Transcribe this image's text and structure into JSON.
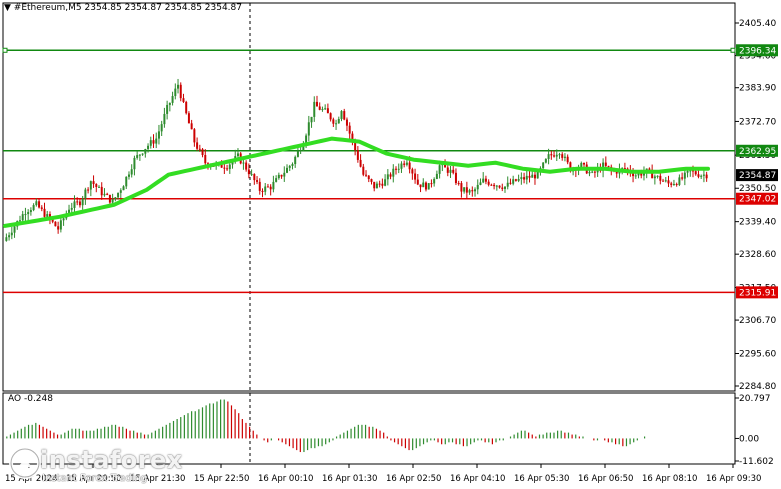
{
  "header": {
    "symbol": "#Ethereum,M5",
    "ohlc": "2354.85 2354.87 2354.85 2354.87"
  },
  "watermark": {
    "brand": "instaforex",
    "tagline": "Instant Forex Trading"
  },
  "colors": {
    "bull_candle": "#2e8b2e",
    "bear_candle": "#cc0000",
    "moving_average": "#33dd22",
    "resistance_line": "#118811",
    "support_line": "#dd0000",
    "ao_up": "#2e8b2e",
    "ao_down": "#cc0000"
  },
  "chart_data": {
    "type": "candlestick",
    "price_axis": {
      "ylim": [
        2284.8,
        2405.4
      ],
      "ticks": [
        "2405.40",
        "2394.60",
        "2383.90",
        "2372.70",
        "2361.50",
        "2350.50",
        "2339.40",
        "2328.60",
        "2317.50",
        "2306.70",
        "2295.60",
        "2284.80"
      ]
    },
    "time_labels": [
      "15 Apr 2024",
      "15 Apr 20:50",
      "15 Apr 21:30",
      "15 Apr 22:50",
      "16 Apr 00:10",
      "16 Apr 01:30",
      "16 Apr 02:50",
      "16 Apr 04:10",
      "16 Apr 05:30",
      "16 Apr 06:50",
      "16 Apr 08:10",
      "16 Apr 09:30"
    ],
    "levels": [
      {
        "value": 2396.34,
        "label": "2396.34",
        "kind": "resistance"
      },
      {
        "value": 2362.95,
        "label": "2362.95",
        "kind": "resistance"
      },
      {
        "value": 2347.02,
        "label": "2347.02",
        "kind": "support"
      },
      {
        "value": 2315.91,
        "label": "2315.91",
        "kind": "support"
      }
    ],
    "current_price": {
      "value": 2354.87,
      "label": "2354.87"
    },
    "close_path": [
      [
        0,
        2333
      ],
      [
        4,
        2338
      ],
      [
        8,
        2343
      ],
      [
        12,
        2345
      ],
      [
        16,
        2341
      ],
      [
        20,
        2337
      ],
      [
        24,
        2344
      ],
      [
        28,
        2346
      ],
      [
        32,
        2353
      ],
      [
        36,
        2349
      ],
      [
        40,
        2346
      ],
      [
        44,
        2352
      ],
      [
        48,
        2360
      ],
      [
        52,
        2364
      ],
      [
        56,
        2367
      ],
      [
        60,
        2377
      ],
      [
        64,
        2385
      ],
      [
        66,
        2378
      ],
      [
        70,
        2366
      ],
      [
        74,
        2359
      ],
      [
        78,
        2358
      ],
      [
        82,
        2358
      ],
      [
        86,
        2361
      ],
      [
        90,
        2356
      ],
      [
        94,
        2350
      ],
      [
        98,
        2351
      ],
      [
        102,
        2355
      ],
      [
        106,
        2359
      ],
      [
        110,
        2366
      ],
      [
        114,
        2378
      ],
      [
        118,
        2376
      ],
      [
        122,
        2372
      ],
      [
        124,
        2377
      ],
      [
        128,
        2366
      ],
      [
        132,
        2355
      ],
      [
        136,
        2351
      ],
      [
        140,
        2353
      ],
      [
        144,
        2357
      ],
      [
        148,
        2360
      ],
      [
        152,
        2352
      ],
      [
        156,
        2351
      ],
      [
        160,
        2358
      ],
      [
        164,
        2356
      ],
      [
        168,
        2350
      ],
      [
        172,
        2349
      ],
      [
        176,
        2353
      ],
      [
        180,
        2352
      ],
      [
        184,
        2351
      ],
      [
        188,
        2353
      ],
      [
        192,
        2354
      ],
      [
        196,
        2355
      ],
      [
        200,
        2361
      ],
      [
        204,
        2363
      ],
      [
        208,
        2357
      ],
      [
        212,
        2358
      ],
      [
        216,
        2355
      ],
      [
        220,
        2358
      ],
      [
        224,
        2356
      ],
      [
        228,
        2357
      ],
      [
        232,
        2355
      ],
      [
        236,
        2356
      ],
      [
        240,
        2354
      ],
      [
        244,
        2352
      ],
      [
        248,
        2353
      ],
      [
        252,
        2356
      ],
      [
        256,
        2355
      ],
      [
        258,
        2355
      ]
    ],
    "ma_path": [
      [
        0,
        2338
      ],
      [
        20,
        2341
      ],
      [
        40,
        2345
      ],
      [
        52,
        2350
      ],
      [
        60,
        2355
      ],
      [
        70,
        2357
      ],
      [
        80,
        2359
      ],
      [
        90,
        2361
      ],
      [
        100,
        2363
      ],
      [
        110,
        2365
      ],
      [
        120,
        2367
      ],
      [
        130,
        2366
      ],
      [
        140,
        2362
      ],
      [
        150,
        2360
      ],
      [
        160,
        2359
      ],
      [
        170,
        2358
      ],
      [
        180,
        2359
      ],
      [
        190,
        2357
      ],
      [
        200,
        2356
      ],
      [
        210,
        2357
      ],
      [
        220,
        2357
      ],
      [
        230,
        2356
      ],
      [
        240,
        2356
      ],
      [
        250,
        2357
      ],
      [
        258,
        2357
      ]
    ],
    "ao": {
      "label": "AO",
      "value": "-0.248",
      "ticks": [
        "20.797",
        "0.00",
        "-11.602"
      ],
      "ylim": [
        -11.602,
        20.797
      ],
      "values": [
        1,
        2,
        3,
        4,
        5,
        6,
        7,
        7,
        8,
        7,
        6,
        5,
        4,
        3,
        2,
        2,
        3,
        4,
        5,
        5,
        5,
        4,
        4,
        4,
        4,
        5,
        5,
        6,
        6,
        7,
        7,
        6,
        6,
        5,
        4,
        4,
        3,
        3,
        2,
        2,
        3,
        4,
        5,
        6,
        7,
        8,
        9,
        10,
        11,
        12,
        13,
        14,
        14,
        15,
        16,
        17,
        18,
        18,
        19,
        20,
        20,
        19,
        17,
        15,
        13,
        10,
        8,
        6,
        4,
        2,
        0,
        -1,
        -2,
        -1,
        0,
        -1,
        -2,
        -3,
        -4,
        -5,
        -6,
        -7,
        -7,
        -6,
        -5,
        -5,
        -4,
        -4,
        -3,
        -2,
        -1,
        1,
        2,
        3,
        4,
        5,
        6,
        7,
        7,
        7,
        6,
        6,
        5,
        4,
        3,
        1,
        -1,
        -2,
        -3,
        -4,
        -5,
        -6,
        -6,
        -5,
        -4,
        -3,
        -2,
        -1,
        -1,
        -2,
        -3,
        -3,
        -2,
        -2,
        -3,
        -3,
        -4,
        -4,
        -3,
        -2,
        -1,
        -1,
        -2,
        -2,
        -3,
        -2,
        -1,
        -1,
        0,
        1,
        2,
        3,
        4,
        4,
        3,
        2,
        1,
        2,
        2,
        3,
        3,
        3,
        4,
        4,
        3,
        3,
        2,
        2,
        1,
        1,
        0,
        0,
        -1,
        -1,
        0,
        -1,
        -2,
        -2,
        -3,
        -3,
        -4,
        -4,
        -3,
        -2,
        -1,
        0,
        1,
        0,
        0,
        0,
        0,
        0,
        0,
        0,
        0,
        0,
        0,
        0,
        0,
        0,
        0,
        0,
        0,
        0
      ]
    }
  }
}
